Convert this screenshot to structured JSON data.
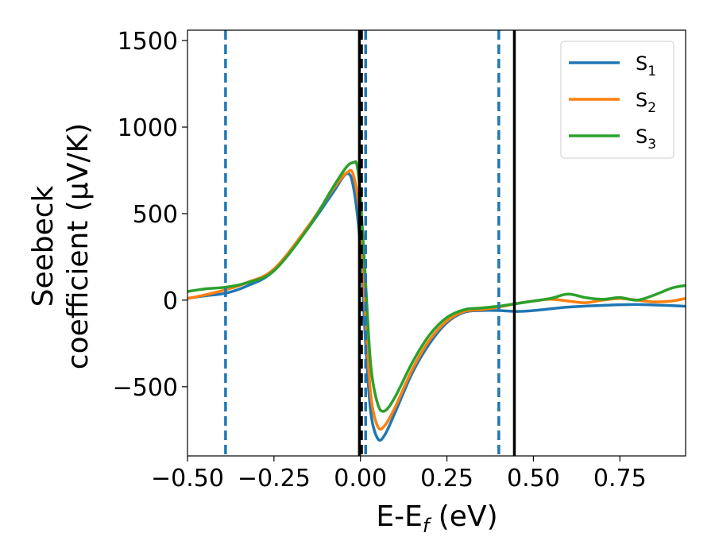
{
  "chart_data": {
    "type": "line",
    "xlabel": "E-E",
    "xlabel_sub": "f",
    "xlabel_unit": " (eV)",
    "ylabel_line1": "Seebeck",
    "ylabel_line2": "coefficient  (μV/K)",
    "xlim": [
      -0.5,
      0.94
    ],
    "ylim": [
      -900,
      1560
    ],
    "xticks": [
      -0.5,
      -0.25,
      0.0,
      0.25,
      0.5,
      0.75
    ],
    "xtick_labels": [
      "−0.50",
      "−0.25",
      "0.00",
      "0.25",
      "0.50",
      "0.75"
    ],
    "yticks": [
      -500,
      0,
      500,
      1000,
      1500
    ],
    "ytick_labels": [
      "−500",
      "0",
      "500",
      "1000",
      "1500"
    ],
    "grid": false,
    "legend_position": "top-right",
    "vlines": [
      {
        "x": -0.39,
        "style": "dashed",
        "color": "#1f77b4"
      },
      {
        "x": 0.0,
        "style": "dashed",
        "color": "#1f77b4"
      },
      {
        "x": 0.015,
        "style": "dashed",
        "color": "#1f77b4"
      },
      {
        "x": 0.4,
        "style": "dashed",
        "color": "#1f77b4"
      },
      {
        "x": -0.003,
        "style": "solid",
        "color": "#000000"
      },
      {
        "x": 0.003,
        "style": "dashed",
        "color": "#000000"
      },
      {
        "x": 0.445,
        "style": "solid",
        "color": "#000000"
      }
    ],
    "series": [
      {
        "name": "S",
        "sub": "1",
        "color": "#1f77b4",
        "x": [
          -0.5,
          -0.45,
          -0.39,
          -0.33,
          -0.25,
          -0.15,
          -0.08,
          -0.04,
          -0.02,
          0.0,
          0.015,
          0.03,
          0.05,
          0.07,
          0.1,
          0.15,
          0.2,
          0.25,
          0.3,
          0.35,
          0.4,
          0.45,
          0.5,
          0.6,
          0.7,
          0.8,
          0.94
        ],
        "y": [
          10,
          25,
          40,
          80,
          170,
          420,
          620,
          730,
          650,
          300,
          -250,
          -650,
          -800,
          -780,
          -650,
          -420,
          -250,
          -130,
          -70,
          -60,
          -60,
          -65,
          -60,
          -40,
          -30,
          -25,
          -35
        ]
      },
      {
        "name": "S",
        "sub": "2",
        "color": "#ff7f0e",
        "x": [
          -0.5,
          -0.45,
          -0.39,
          -0.33,
          -0.25,
          -0.15,
          -0.08,
          -0.04,
          -0.02,
          0.0,
          0.015,
          0.03,
          0.05,
          0.07,
          0.1,
          0.15,
          0.2,
          0.25,
          0.3,
          0.35,
          0.4,
          0.45,
          0.5,
          0.55,
          0.6,
          0.65,
          0.7,
          0.75,
          0.8,
          0.85,
          0.9,
          0.94
        ],
        "y": [
          10,
          30,
          60,
          100,
          180,
          430,
          640,
          735,
          720,
          450,
          -100,
          -550,
          -730,
          -725,
          -620,
          -400,
          -230,
          -120,
          -65,
          -55,
          -40,
          -20,
          -5,
          5,
          -5,
          -15,
          0,
          10,
          0,
          -10,
          -5,
          10
        ]
      },
      {
        "name": "S",
        "sub": "3",
        "color": "#2ca02c",
        "x": [
          -0.5,
          -0.45,
          -0.39,
          -0.33,
          -0.25,
          -0.15,
          -0.08,
          -0.04,
          -0.02,
          -0.01,
          0.0,
          0.015,
          0.03,
          0.05,
          0.07,
          0.1,
          0.15,
          0.2,
          0.25,
          0.3,
          0.35,
          0.4,
          0.45,
          0.5,
          0.55,
          0.6,
          0.65,
          0.7,
          0.75,
          0.8,
          0.85,
          0.9,
          0.94
        ],
        "y": [
          50,
          65,
          75,
          100,
          170,
          420,
          650,
          770,
          795,
          780,
          600,
          100,
          -380,
          -600,
          -640,
          -560,
          -360,
          -200,
          -100,
          -55,
          -45,
          -35,
          -20,
          -5,
          10,
          35,
          15,
          5,
          15,
          0,
          30,
          70,
          85
        ]
      }
    ]
  }
}
